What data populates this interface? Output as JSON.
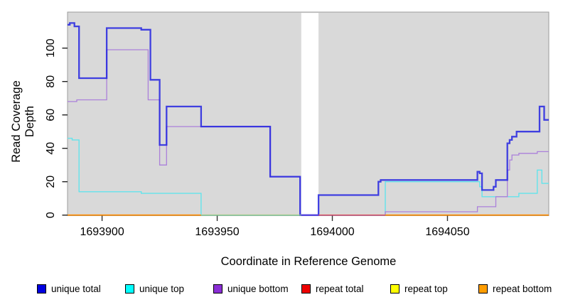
{
  "chart_data": {
    "type": "line",
    "step": true,
    "title": "",
    "xlabel": "Coordinate in Reference Genome",
    "ylabel": "Read Coverage Depth",
    "x_range": [
      1693885,
      1694094
    ],
    "y_range": [
      0,
      121
    ],
    "x_ticks": [
      1693900,
      1693950,
      1694000,
      1694050
    ],
    "y_ticks": [
      0,
      20,
      40,
      60,
      80,
      100
    ],
    "grid": false,
    "legend_position": "bottom",
    "panel_bg": "#d9d9d9",
    "panel_border": "#9c9c9c",
    "tick_color": "#333333",
    "masked_region": {
      "from": 1693986.5,
      "to": 1693994,
      "color": "#ffffff"
    },
    "series": [
      {
        "name": "unique total",
        "color": "rgba(35,35,225,0.85)",
        "width": 2.3,
        "points": [
          [
            1693885,
            114
          ],
          [
            1693886,
            115
          ],
          [
            1693888,
            113
          ],
          [
            1693890,
            82
          ],
          [
            1693902,
            112
          ],
          [
            1693917,
            111
          ],
          [
            1693921,
            81
          ],
          [
            1693925,
            42
          ],
          [
            1693928,
            65
          ],
          [
            1693943,
            53
          ],
          [
            1693973,
            23
          ],
          [
            1693986,
            0
          ],
          [
            1693994,
            12
          ],
          [
            1694020,
            20
          ],
          [
            1694021,
            21
          ],
          [
            1694063,
            26
          ],
          [
            1694064,
            25
          ],
          [
            1694065,
            15
          ],
          [
            1694070,
            17
          ],
          [
            1694071,
            21
          ],
          [
            1694076,
            43
          ],
          [
            1694077,
            45
          ],
          [
            1694078,
            47
          ],
          [
            1694080,
            50
          ],
          [
            1694090,
            65
          ],
          [
            1694092,
            57
          ],
          [
            1694094,
            57
          ]
        ]
      },
      {
        "name": "unique top",
        "color": "#63e4ec",
        "width": 1.4,
        "points": [
          [
            1693885,
            46
          ],
          [
            1693887,
            45
          ],
          [
            1693890,
            14
          ],
          [
            1693917,
            13
          ],
          [
            1693943,
            0
          ],
          [
            1694023,
            20
          ],
          [
            1694064,
            17
          ],
          [
            1694065,
            11
          ],
          [
            1694081,
            13
          ],
          [
            1694089,
            27
          ],
          [
            1694091,
            19
          ],
          [
            1694094,
            19
          ]
        ]
      },
      {
        "name": "unique bottom",
        "color": "#ab80da",
        "width": 1.3,
        "points": [
          [
            1693885,
            68
          ],
          [
            1693889,
            69
          ],
          [
            1693902,
            99
          ],
          [
            1693920,
            69
          ],
          [
            1693925,
            30
          ],
          [
            1693928,
            53
          ],
          [
            1693973,
            23
          ],
          [
            1693986,
            0
          ],
          [
            1694023,
            2
          ],
          [
            1694063,
            5
          ],
          [
            1694071,
            11
          ],
          [
            1694076,
            27
          ],
          [
            1694077,
            33
          ],
          [
            1694078,
            36
          ],
          [
            1694081,
            37
          ],
          [
            1694089,
            38
          ],
          [
            1694094,
            38
          ]
        ]
      },
      {
        "name": "repeat total",
        "color": "#cc2222",
        "width": 1.0,
        "points": [
          [
            1693885,
            0
          ],
          [
            1694094,
            0
          ]
        ]
      },
      {
        "name": "repeat top",
        "color": "#e8e800",
        "width": 1.0,
        "points": [
          [
            1693885,
            0
          ],
          [
            1694094,
            0
          ]
        ]
      },
      {
        "name": "repeat bottom",
        "color": "#ff8c00",
        "width": 1.6,
        "points": [
          [
            1693885,
            0
          ],
          [
            1694094,
            0
          ]
        ]
      }
    ],
    "baseline_segments": [
      {
        "from": 1693885,
        "to": 1693943,
        "color": "#ff8c00",
        "width": 1.6
      },
      {
        "from": 1693943,
        "to": 1693986.5,
        "color": "#93d593",
        "width": 1.2
      },
      {
        "from": 1693986.5,
        "to": 1693994,
        "color": "#5b49e0",
        "width": 2.0
      },
      {
        "from": 1693994,
        "to": 1694023,
        "color": "#d64a70",
        "width": 1.4
      },
      {
        "from": 1694023,
        "to": 1694094,
        "color": "#ff8c00",
        "width": 1.6
      }
    ]
  },
  "axes": {
    "xlabel": "Coordinate in Reference Genome",
    "ylabel": "Read Coverage Depth"
  },
  "legend": {
    "items": [
      {
        "label": "unique total",
        "color": "#0000e0"
      },
      {
        "label": "unique top",
        "color": "#00ffff"
      },
      {
        "label": "unique bottom",
        "color": "#8b2fd6"
      },
      {
        "label": "repeat total",
        "color": "#ee0000"
      },
      {
        "label": "repeat top",
        "color": "#ffff00"
      },
      {
        "label": "repeat bottom",
        "color": "#ff9d00"
      }
    ]
  }
}
